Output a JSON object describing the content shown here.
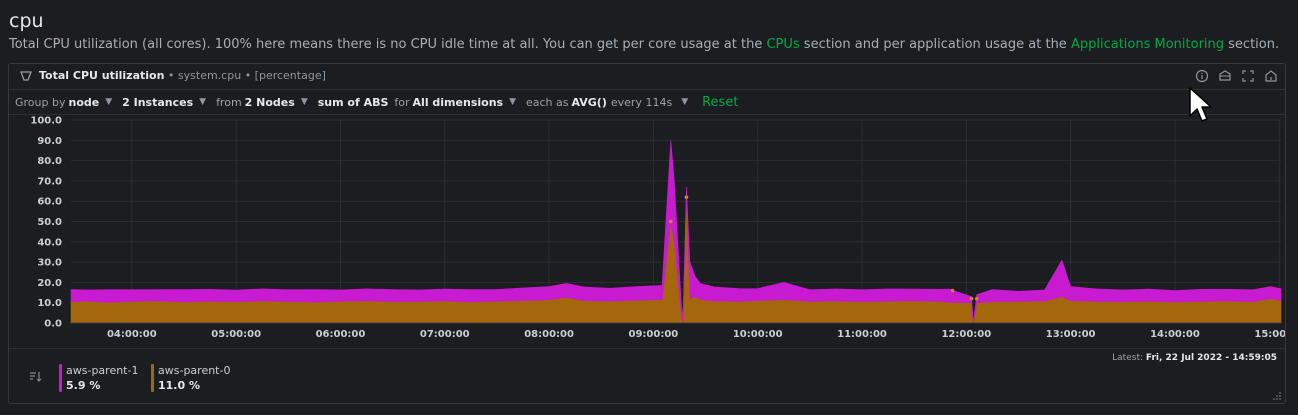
{
  "section": {
    "title": "cpu",
    "description_before": "Total CPU utilization (all cores). 100% here means there is no CPU idle time at all. You can get per core usage at the ",
    "link_cpus": "CPUs",
    "description_middle": " section and per application usage at the ",
    "link_apps": "Applications Monitoring",
    "description_after": " section."
  },
  "chart": {
    "title": "Total CPU utilization",
    "context": "• system.cpu",
    "units": "• [percentage]",
    "header_icons": [
      "info-icon",
      "dashboard-icon",
      "fullscreen-icon",
      "bookmark-icon"
    ]
  },
  "filters": {
    "group_by_label": "Group by",
    "group_by_value": "node",
    "instances": "2 Instances",
    "from_label": "from",
    "nodes": "2 Nodes",
    "aggregation": "sum of ABS",
    "for_label": "for",
    "dimensions": "All dimensions",
    "each_as_label": "each as",
    "time_agg": "AVG()",
    "every": "every 114s",
    "reset": "Reset"
  },
  "chart_data": {
    "type": "area",
    "stacked": true,
    "ylim": [
      0,
      100
    ],
    "y_ticks": [
      "100.0",
      "90.0",
      "80.0",
      "70.0",
      "60.0",
      "50.0",
      "40.0",
      "30.0",
      "20.0",
      "10.0",
      "0.0"
    ],
    "x_ticks": [
      "04:00:00",
      "05:00:00",
      "06:00:00",
      "07:00:00",
      "08:00:00",
      "09:00:00",
      "10:00:00",
      "11:00:00",
      "12:00:00",
      "13:00:00",
      "14:00:00",
      "15:00:00"
    ],
    "grid": true,
    "colors": {
      "aws-parent-0": "#a5670b",
      "aws-parent-1": "#c81ad1"
    },
    "series": [
      {
        "name": "aws-parent-0",
        "points": [
          [
            "03:25",
            10.5
          ],
          [
            "03:35",
            10.8
          ],
          [
            "03:45",
            10.2
          ],
          [
            "04:00",
            10.6
          ],
          [
            "04:15",
            10.9
          ],
          [
            "04:30",
            10.4
          ],
          [
            "04:45",
            10.7
          ],
          [
            "05:00",
            10.5
          ],
          [
            "05:15",
            10.8
          ],
          [
            "05:30",
            10.6
          ],
          [
            "05:45",
            10.3
          ],
          [
            "06:00",
            10.7
          ],
          [
            "06:15",
            10.9
          ],
          [
            "06:30",
            10.5
          ],
          [
            "06:45",
            10.6
          ],
          [
            "07:00",
            10.8
          ],
          [
            "07:15",
            10.4
          ],
          [
            "07:30",
            10.7
          ],
          [
            "07:45",
            11.0
          ],
          [
            "08:00",
            11.5
          ],
          [
            "08:10",
            12.5
          ],
          [
            "08:20",
            11.0
          ],
          [
            "08:35",
            10.7
          ],
          [
            "08:50",
            11.2
          ],
          [
            "09:05",
            11.5
          ],
          [
            "09:10",
            50.0
          ],
          [
            "09:12",
            40.0
          ],
          [
            "09:16",
            5.0
          ],
          [
            "09:17",
            0.0
          ],
          [
            "09:19",
            62.0
          ],
          [
            "09:21",
            12.0
          ],
          [
            "09:24",
            13.0
          ],
          [
            "09:27",
            11.5
          ],
          [
            "09:35",
            10.8
          ],
          [
            "09:50",
            10.6
          ],
          [
            "10:00",
            11.0
          ],
          [
            "10:15",
            11.5
          ],
          [
            "10:30",
            10.6
          ],
          [
            "10:45",
            10.8
          ],
          [
            "11:00",
            10.5
          ],
          [
            "11:15",
            10.7
          ],
          [
            "11:30",
            10.9
          ],
          [
            "11:45",
            10.6
          ],
          [
            "11:50",
            10.2
          ],
          [
            "12:03",
            10.0
          ],
          [
            "12:04",
            0.0
          ],
          [
            "12:06",
            10.0
          ],
          [
            "12:15",
            10.5
          ],
          [
            "12:30",
            10.6
          ],
          [
            "12:45",
            10.8
          ],
          [
            "12:55",
            13.0
          ],
          [
            "13:00",
            11.0
          ],
          [
            "13:15",
            10.6
          ],
          [
            "13:30",
            10.5
          ],
          [
            "13:45",
            10.7
          ],
          [
            "14:00",
            10.4
          ],
          [
            "14:15",
            10.6
          ],
          [
            "14:30",
            10.8
          ],
          [
            "14:45",
            10.5
          ],
          [
            "14:55",
            12.0
          ],
          [
            "15:01",
            11.0
          ]
        ]
      },
      {
        "name": "aws-parent-1",
        "points": [
          [
            "03:25",
            6.0
          ],
          [
            "03:35",
            5.5
          ],
          [
            "03:45",
            6.2
          ],
          [
            "04:00",
            5.8
          ],
          [
            "04:15",
            5.6
          ],
          [
            "04:30",
            6.1
          ],
          [
            "04:45",
            5.9
          ],
          [
            "05:00",
            5.7
          ],
          [
            "05:15",
            6.0
          ],
          [
            "05:30",
            5.8
          ],
          [
            "05:45",
            6.2
          ],
          [
            "06:00",
            5.6
          ],
          [
            "06:15",
            5.9
          ],
          [
            "06:30",
            6.0
          ],
          [
            "06:45",
            5.7
          ],
          [
            "07:00",
            5.9
          ],
          [
            "07:15",
            6.1
          ],
          [
            "07:30",
            5.8
          ],
          [
            "07:45",
            6.3
          ],
          [
            "08:00",
            6.5
          ],
          [
            "08:10",
            7.0
          ],
          [
            "08:20",
            6.8
          ],
          [
            "08:35",
            6.4
          ],
          [
            "08:50",
            6.8
          ],
          [
            "09:05",
            7.0
          ],
          [
            "09:10",
            40.0
          ],
          [
            "09:12",
            30.0
          ],
          [
            "09:16",
            5.0
          ],
          [
            "09:17",
            3.0
          ],
          [
            "09:19",
            5.0
          ],
          [
            "09:21",
            18.0
          ],
          [
            "09:24",
            10.0
          ],
          [
            "09:27",
            8.0
          ],
          [
            "09:35",
            7.0
          ],
          [
            "09:50",
            6.3
          ],
          [
            "10:00",
            6.0
          ],
          [
            "10:15",
            8.5
          ],
          [
            "10:30",
            5.8
          ],
          [
            "10:45",
            6.0
          ],
          [
            "11:00",
            5.9
          ],
          [
            "11:15",
            6.1
          ],
          [
            "11:30",
            5.8
          ],
          [
            "11:45",
            6.0
          ],
          [
            "11:50",
            6.5
          ],
          [
            "12:03",
            3.0
          ],
          [
            "12:04",
            0.0
          ],
          [
            "12:06",
            4.0
          ],
          [
            "12:15",
            6.0
          ],
          [
            "12:30",
            5.0
          ],
          [
            "12:45",
            5.5
          ],
          [
            "12:55",
            18.0
          ],
          [
            "13:00",
            7.0
          ],
          [
            "13:15",
            6.2
          ],
          [
            "13:30",
            5.8
          ],
          [
            "13:45",
            6.0
          ],
          [
            "14:00",
            5.6
          ],
          [
            "14:15",
            6.0
          ],
          [
            "14:30",
            5.8
          ],
          [
            "14:45",
            5.9
          ],
          [
            "14:55",
            6.0
          ],
          [
            "15:01",
            5.9
          ]
        ]
      }
    ]
  },
  "footer": {
    "latest_label": "Latest:",
    "latest_value": "Fri, 22 Jul 2022 - 14:59:05"
  },
  "legend": [
    {
      "name": "aws-parent-1",
      "value": "5.9 %",
      "color": "#c81ad1"
    },
    {
      "name": "aws-parent-0",
      "value": "11.0 %",
      "color": "#a5670b"
    }
  ]
}
